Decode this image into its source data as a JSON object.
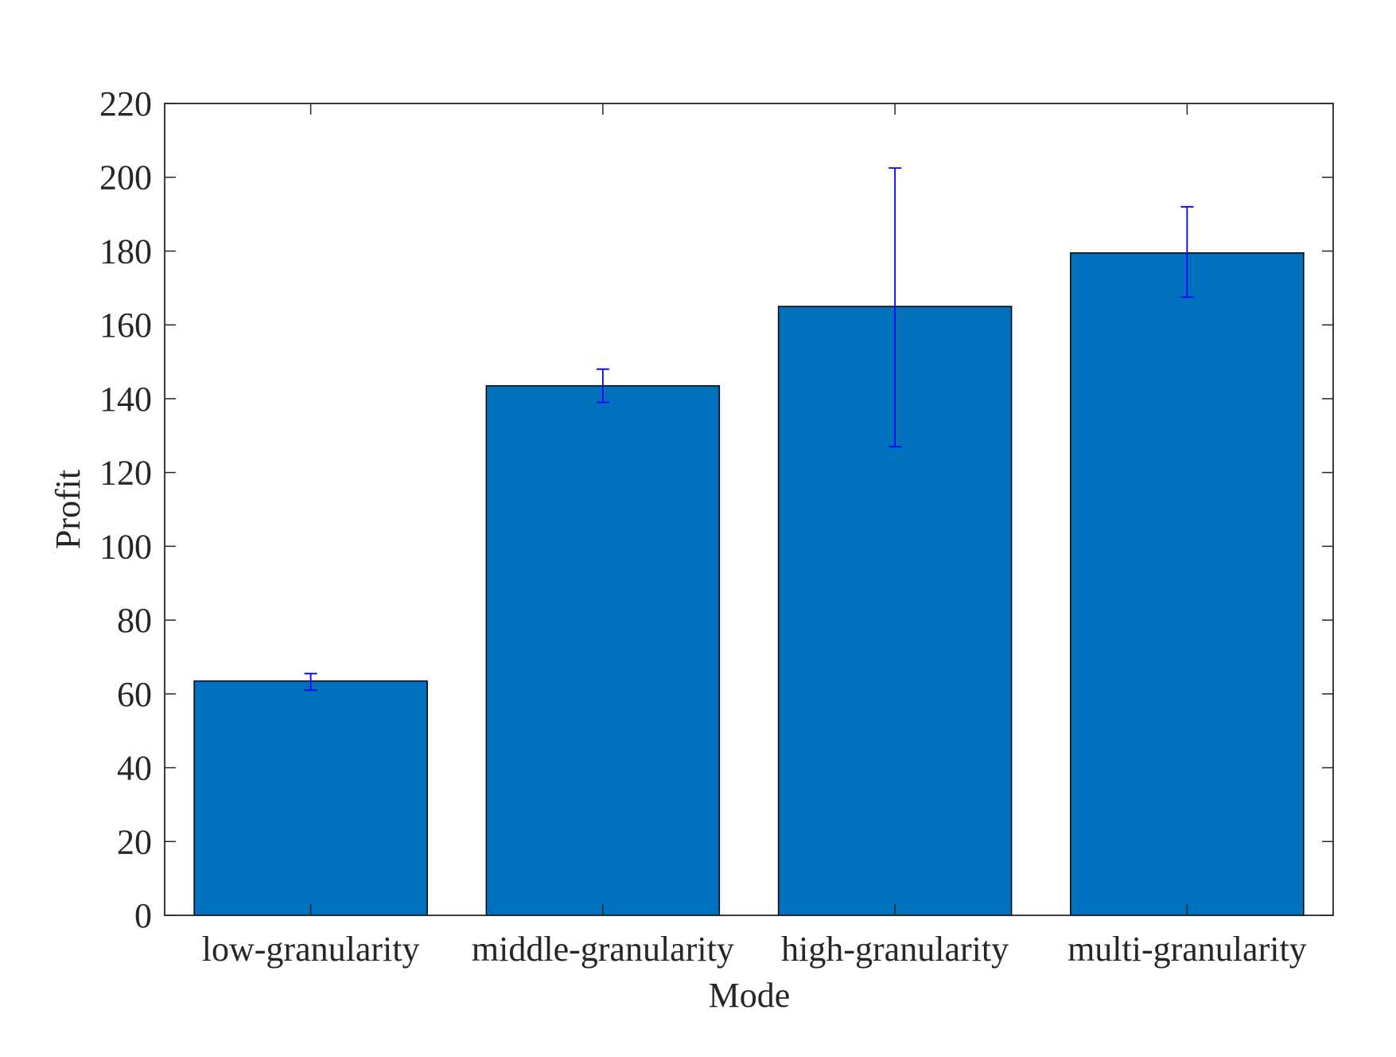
{
  "chart_data": {
    "type": "bar",
    "categories": [
      "low-granularity",
      "middle-granularity",
      "high-granularity",
      "multi-granularity"
    ],
    "values": [
      63.5,
      143.5,
      165,
      179.5
    ],
    "error_bars": [
      {
        "low": 61,
        "high": 65.5
      },
      {
        "low": 139,
        "high": 148
      },
      {
        "low": 127,
        "high": 202.5
      },
      {
        "low": 167.5,
        "high": 192
      }
    ],
    "title": "",
    "xlabel": "Mode",
    "ylabel": "Profit",
    "ylim": [
      0,
      220
    ],
    "yticks": [
      0,
      20,
      40,
      60,
      80,
      100,
      120,
      140,
      160,
      180,
      200,
      220
    ],
    "grid": false,
    "legend": "none",
    "colors": {
      "bar_fill": "#0072BD",
      "bar_edge": "#000000",
      "error_bar": "#0000FF",
      "axis": "#262626"
    }
  }
}
